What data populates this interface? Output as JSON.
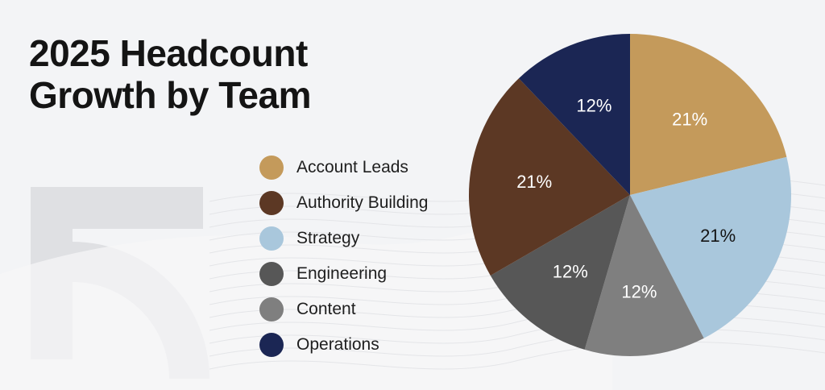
{
  "title": {
    "line1": "2025 Headcount",
    "line2": "Growth by Team"
  },
  "chart_data": {
    "type": "pie",
    "legend_position": "left",
    "slices": [
      {
        "label": "Account Leads",
        "value": 21,
        "display": "21%",
        "color": "#c49a5b",
        "label_color": "#ffffff"
      },
      {
        "label": "Strategy",
        "value": 21,
        "display": "21%",
        "color": "#a9c7dc",
        "label_color": "#141414"
      },
      {
        "label": "Content",
        "value": 12,
        "display": "12%",
        "color": "#7f7f7f",
        "label_color": "#ffffff"
      },
      {
        "label": "Engineering",
        "value": 12,
        "display": "12%",
        "color": "#575757",
        "label_color": "#ffffff"
      },
      {
        "label": "Authority Building",
        "value": 21,
        "display": "21%",
        "color": "#5c3824",
        "label_color": "#ffffff"
      },
      {
        "label": "Operations",
        "value": 12,
        "display": "12%",
        "color": "#1b2654",
        "label_color": "#ffffff"
      }
    ],
    "legend_order": [
      "Account Leads",
      "Authority Building",
      "Strategy",
      "Engineering",
      "Content",
      "Operations"
    ]
  }
}
